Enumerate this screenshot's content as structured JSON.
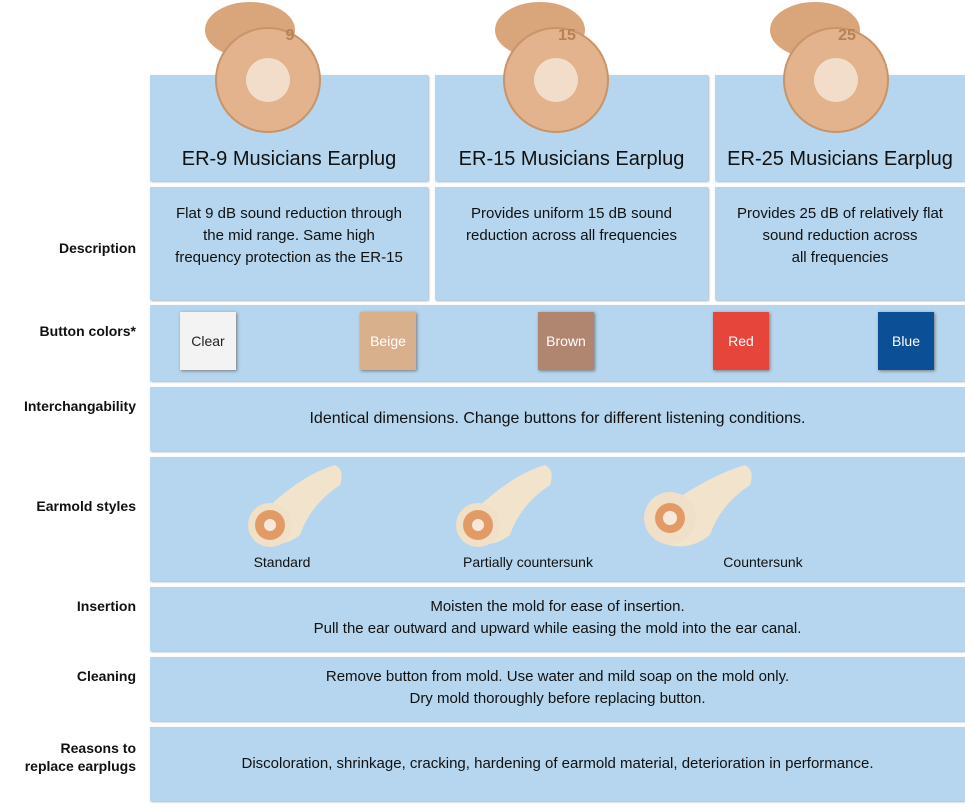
{
  "products": [
    {
      "number": "9",
      "name": "ER-9 Musicians Earplug",
      "description": [
        "Flat 9 dB sound reduction through",
        "the mid range. Same high",
        "frequency protection as the ER-15"
      ]
    },
    {
      "number": "15",
      "name": "ER-15 Musicians Earplug",
      "description": [
        "Provides uniform 15 dB sound",
        "reduction across all frequencies"
      ]
    },
    {
      "number": "25",
      "name": "ER-25 Musicians Earplug",
      "description": [
        "Provides 25 dB of relatively flat",
        "sound reduction across",
        "all frequencies"
      ]
    }
  ],
  "rows": {
    "description": {
      "label": [
        "Description"
      ]
    },
    "button_colors": {
      "label": [
        "Button colors*"
      ],
      "colors": [
        "Clear",
        "Beige",
        "Brown",
        "Red",
        "Blue"
      ]
    },
    "interchangability": {
      "label": [
        "Interchangability"
      ],
      "text": [
        "Identical dimensions. Change buttons for different listening conditions."
      ]
    },
    "earmold_styles": {
      "label": [
        "Earmold styles"
      ],
      "styles": [
        "Standard",
        "Partially countersunk",
        "Countersunk"
      ]
    },
    "insertion": {
      "label": [
        "Insertion"
      ],
      "text": [
        "Moisten the mold for ease of insertion.",
        "Pull the ear outward and upward while easing the mold into the ear canal."
      ]
    },
    "cleaning": {
      "label": [
        "Cleaning"
      ],
      "text": [
        "Remove button from mold. Use water and mild soap on the mold only.",
        "Dry mold thoroughly before replacing button."
      ]
    },
    "reasons": {
      "label": [
        "Reasons to",
        "replace earplugs"
      ],
      "text": [
        "Discoloration, shrinkage, cracking, hardening of earmold material, deterioration in performance."
      ]
    }
  }
}
